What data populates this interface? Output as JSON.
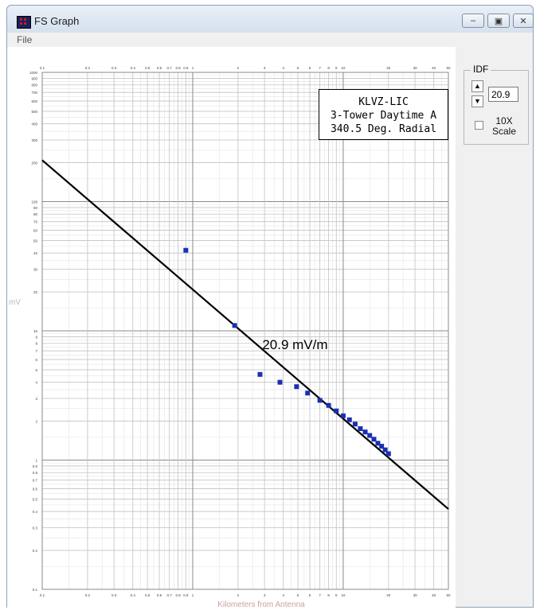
{
  "window": {
    "title": "FS Graph",
    "menu": [
      "File"
    ],
    "icons": {
      "app": "fs-graph-app-icon",
      "minimize": "minimize-icon",
      "maximize": "maximize-icon",
      "close": "close-icon"
    }
  },
  "legend": {
    "lines": [
      "KLVZ-LIC",
      "3-Tower Daytime A",
      "340.5 Deg. Radial"
    ]
  },
  "idf": {
    "label": "IDF",
    "value": "20.9",
    "scale_label": "10X\nScale",
    "scale_checked": false
  },
  "chart_data": {
    "type": "scatter",
    "title": "",
    "xlabel": "Kilometers from Antenna",
    "ylabel": "mV",
    "xscale": "log",
    "yscale": "log",
    "xlim": [
      0.1,
      50
    ],
    "ylim": [
      0.1,
      1000
    ],
    "grid": true,
    "x_tick_labels": [
      "0.1",
      "0.2",
      "0.3",
      "0.4",
      "0.5",
      "0.6",
      "0.7",
      "0.8",
      "0.9",
      "1",
      "2",
      "3",
      "4",
      "5",
      "6",
      "7",
      "8",
      "9",
      "10",
      "20",
      "30",
      "40",
      "50"
    ],
    "y_tick_labels": [
      "0.1",
      "0.2",
      "0.3",
      "0.4",
      "0.5",
      "0.6",
      "0.7",
      "0.8",
      "0.9",
      "1",
      "2",
      "3",
      "4",
      "5",
      "6",
      "7",
      "8",
      "9",
      "10",
      "20",
      "30",
      "40",
      "50",
      "60",
      "70",
      "80",
      "90",
      "100",
      "200",
      "300",
      "400",
      "500",
      "600",
      "700",
      "800",
      "900",
      "1000"
    ],
    "annotation": "20.9 mV/m",
    "fit_line": {
      "x": [
        0.1,
        50
      ],
      "y": [
        209,
        0.418
      ]
    },
    "series": [
      {
        "x": [
          0.9,
          1.9,
          2.8,
          3.8,
          4.9,
          5.8,
          7.0,
          8.0,
          9.0,
          10.0,
          11.0,
          12.0,
          13.0,
          14.0,
          15.0,
          16.0,
          17.0,
          18.0,
          19.0,
          20.0
        ],
        "y": [
          42,
          11,
          4.6,
          4.0,
          3.7,
          3.3,
          2.9,
          2.65,
          2.4,
          2.2,
          2.05,
          1.9,
          1.75,
          1.65,
          1.55,
          1.45,
          1.35,
          1.28,
          1.2,
          1.12
        ]
      }
    ]
  }
}
